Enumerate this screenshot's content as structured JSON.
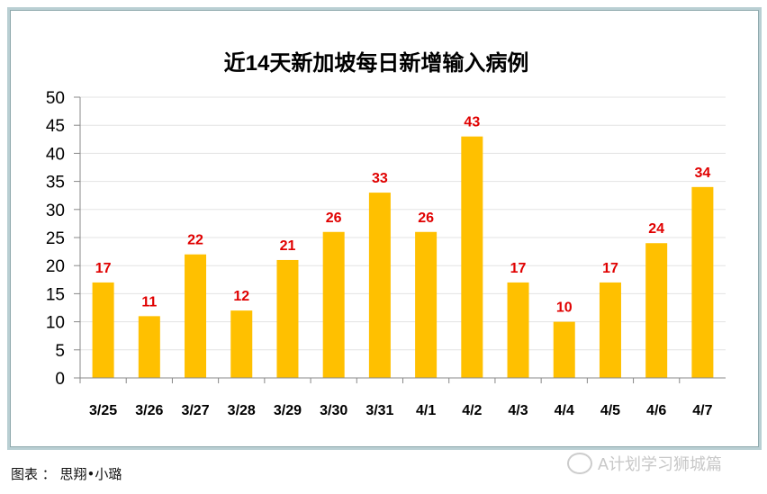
{
  "chart_data": {
    "type": "bar",
    "title": "近14天新加坡每日新增输入病例",
    "categories": [
      "3/25",
      "3/26",
      "3/27",
      "3/28",
      "3/29",
      "3/30",
      "3/31",
      "4/1",
      "4/2",
      "4/3",
      "4/4",
      "4/5",
      "4/6",
      "4/7"
    ],
    "values": [
      17,
      11,
      22,
      12,
      21,
      26,
      33,
      26,
      43,
      17,
      10,
      17,
      24,
      34
    ],
    "ylim": [
      0,
      50
    ],
    "yticks": [
      0,
      5,
      10,
      15,
      20,
      25,
      30,
      35,
      40,
      45,
      50
    ],
    "grid": true,
    "bar_color": "#ffc000",
    "label_color": "#e00000"
  },
  "caption": "图表 ： 思翔•小璐",
  "watermark": "A计划学习狮城篇"
}
